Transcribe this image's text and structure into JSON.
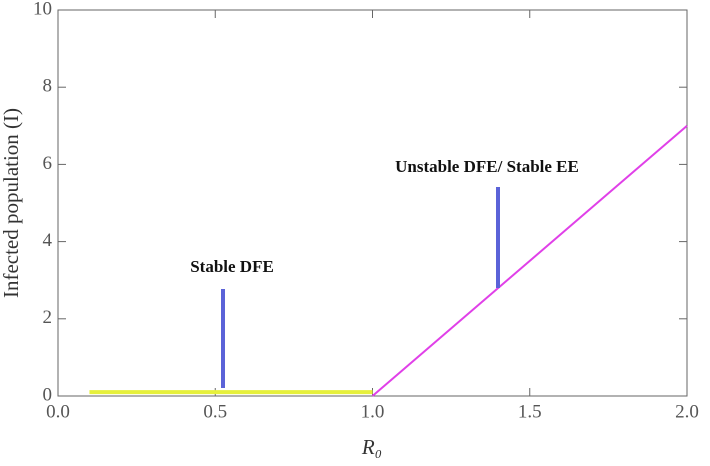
{
  "chart_data": {
    "type": "line",
    "x_label": "R₀",
    "y_label": "Infected population (I)",
    "xlim": [
      0,
      2
    ],
    "ylim": [
      0,
      10
    ],
    "xticks": [
      {
        "value": 0,
        "label": "0.0"
      },
      0.5,
      {
        "value": 1,
        "label": "1.0"
      },
      1.5,
      {
        "value": 2,
        "label": "2.0"
      }
    ],
    "yticks": [
      0,
      2,
      4,
      6,
      8,
      10
    ],
    "series": [
      {
        "color": "#e6f03c",
        "x": [
          0.1,
          1.0
        ],
        "values": [
          0.1,
          0.1
        ]
      },
      {
        "color": "#e040e8",
        "x": [
          1.0,
          2.0
        ],
        "values": [
          0,
          7.0
        ]
      }
    ],
    "annotations": [
      "Stable DFE",
      "Unstable DFE/ Stable EE"
    ]
  }
}
